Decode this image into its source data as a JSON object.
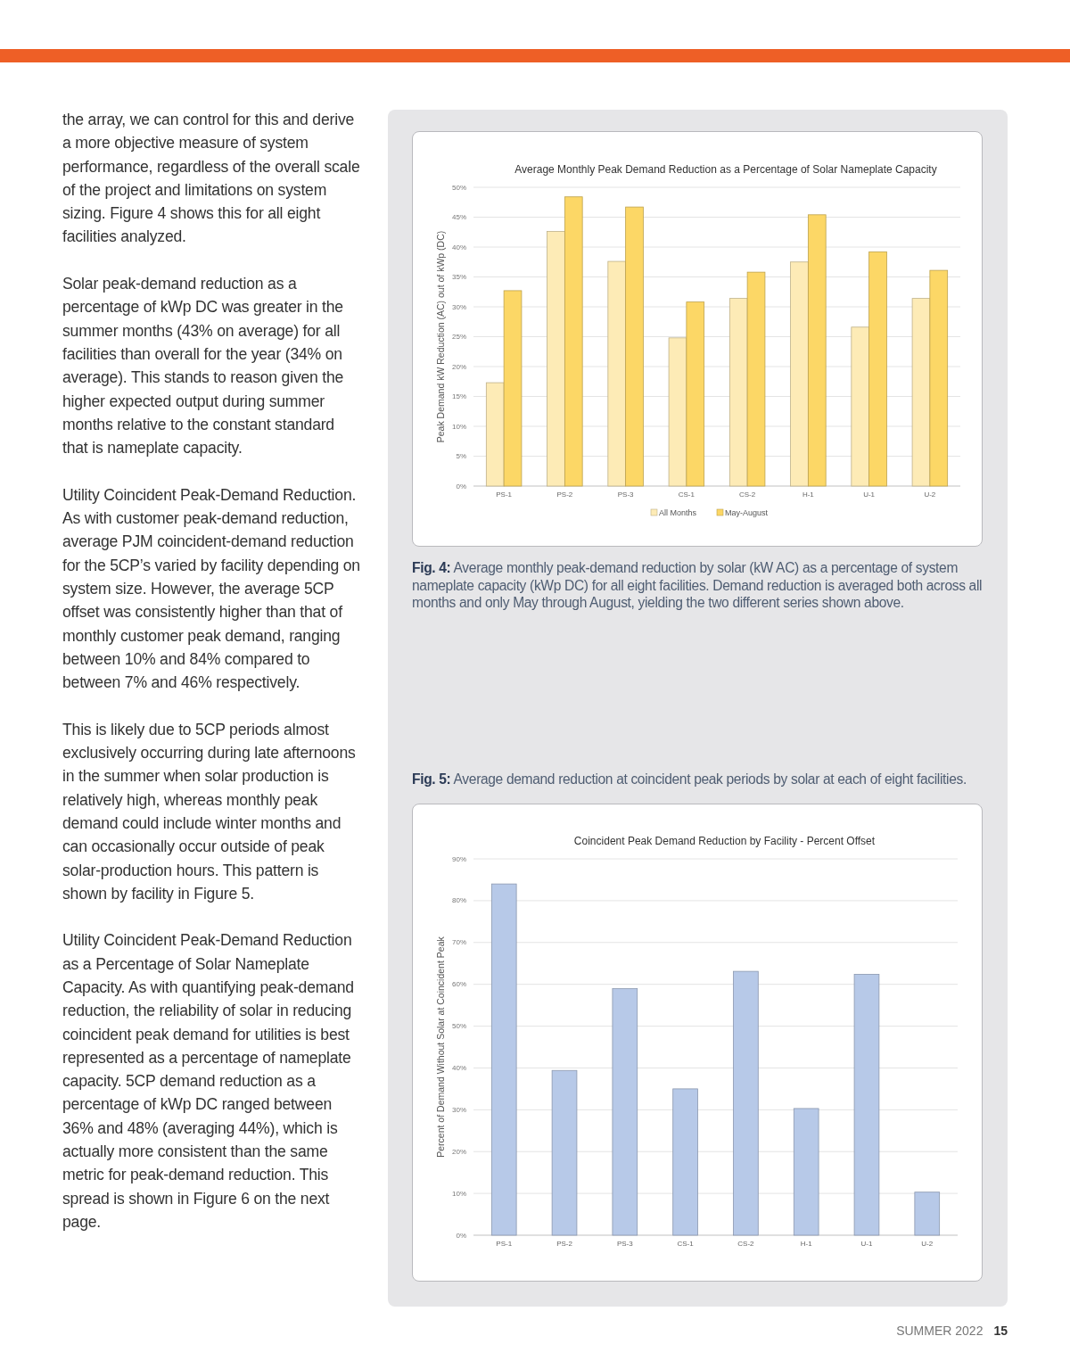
{
  "chart_data": [
    {
      "type": "other",
      "annotations": [
        "the array, we can control for this and derive a more objective measure of system performance, regardless of the overall scale of the project and limitations on system sizing. Figure 4 shows this for all eight facilities analyzed.",
        "Solar peak-demand reduction as a percentage of kWp DC was greater in the summer months (43% on average) for all facilities than overall for the year (34% on average). This stands to reason given the higher expected output during summer months relative to the constant standard that is nameplate capacity.",
        "Utility Coincident Peak-Demand Reduction. As with customer peak-demand reduction, average PJM coincident-demand reduction for the 5CP’s varied by facility depending on system size. However, the average 5CP offset was consistently higher than that of monthly customer peak demand, ranging between 10% and 84% compared to between 7% and 46% respectively.",
        "This is likely due to 5CP periods almost exclusively occurring during late afternoons in the summer when solar production is relatively high, whereas monthly peak demand could include winter months and can occasionally occur outside of peak solar-production hours. This pattern is shown by facility in Figure 5.",
        "Utility Coincident Peak-Demand Reduction as a Percentage of Solar Nameplate Capacity. As with quantifying peak-demand reduction, the reliability of solar in reducing coincident peak demand for utilities is best represented as a percentage of nameplate capacity. 5CP demand reduction as a percentage of kWp DC ranged between 36% and 48% (averaging 44%), which is actually more consistent than the same metric for peak-demand reduction. This spread is shown in Figure 6 on the next page."
      ]
    },
    {
      "type": "bar",
      "title": "Average Monthly Peak Demand Reduction as a Percentage of Solar Nameplate Capacity",
      "ylabel": "Peak Demand kW Reduction (AC) out of kWp (DC)",
      "categories": [
        "PS-1",
        "PS-2",
        "PS-3",
        "CS-1",
        "CS-2",
        "H-1",
        "U-1",
        "U-2"
      ],
      "series": [
        {
          "name": "All Months",
          "color": "#fdebb6",
          "values": [
            17.3,
            42.6,
            37.6,
            24.8,
            31.4,
            37.5,
            26.6,
            31.4
          ]
        },
        {
          "name": "May-August",
          "color": "#fcd766",
          "values": [
            32.7,
            48.4,
            46.7,
            30.8,
            35.8,
            45.4,
            39.2,
            36.1
          ]
        }
      ],
      "ylim": [
        0,
        50
      ],
      "yticks": [
        {
          "value": 0,
          "label": "0%"
        },
        {
          "value": 5,
          "label": "5%"
        },
        {
          "value": 10,
          "label": "10%"
        },
        {
          "value": 15,
          "label": "15%"
        },
        {
          "value": 20,
          "label": "20%"
        },
        {
          "value": 25,
          "label": "25%"
        },
        {
          "value": 30,
          "label": "30%"
        },
        {
          "value": 35,
          "label": "35%"
        },
        {
          "value": 40,
          "label": "40%"
        },
        {
          "value": 45,
          "label": "45%"
        },
        {
          "value": 50,
          "label": "50%"
        }
      ],
      "grid": "y",
      "legend": "bottom",
      "annotations": [
        "Fig. 4: Average monthly peak-demand reduction by solar (kW AC) as a percentage of system nameplate capacity (kWp DC) for all eight facilities. Demand reduction is averaged both across all months and only May through August, yielding the two different series shown above."
      ]
    },
    {
      "type": "bar",
      "title": "Coincident Peak Demand Reduction by Facility - Percent Offset",
      "ylabel": "Percent of Demand Without Solar at Coincident Peak",
      "categories": [
        "PS-1",
        "PS-2",
        "PS-3",
        "CS-1",
        "CS-2",
        "H-1",
        "U-1",
        "U-2"
      ],
      "values": [
        84.0,
        39.4,
        59.0,
        35.0,
        63.1,
        30.3,
        62.4,
        10.3
      ],
      "color": "#b7c9e8",
      "ylim": [
        0,
        90
      ],
      "yticks": [
        {
          "value": 0,
          "label": "0%"
        },
        {
          "value": 10,
          "label": "10%"
        },
        {
          "value": 20,
          "label": "20%"
        },
        {
          "value": 30,
          "label": "30%"
        },
        {
          "value": 40,
          "label": "40%"
        },
        {
          "value": 50,
          "label": "50%"
        },
        {
          "value": 60,
          "label": "60%"
        },
        {
          "value": 70,
          "label": "70%"
        },
        {
          "value": 80,
          "label": "80%"
        },
        {
          "value": 90,
          "label": "90%"
        }
      ],
      "grid": "y",
      "legend": false,
      "annotations": [
        "Fig. 5: Average demand reduction at coincident peak periods by solar at each of eight facilities."
      ]
    },
    {
      "type": "other",
      "annotations": [
        "SUMMER 2022",
        "15"
      ]
    }
  ]
}
